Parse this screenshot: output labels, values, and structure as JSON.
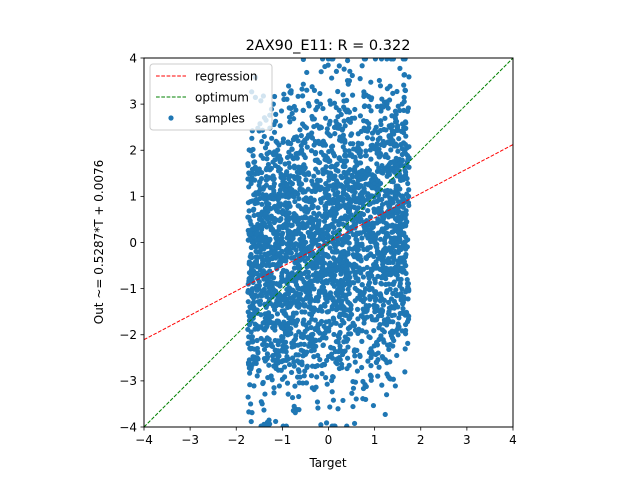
{
  "chart_data": {
    "type": "scatter",
    "title": "2AX90_E11: R = 0.322",
    "xlabel": "Target",
    "ylabel": "Out ~= 0.5287*T + 0.0076",
    "xlim": [
      -4,
      4
    ],
    "ylim": [
      -4,
      4
    ],
    "xticks": [
      "−4",
      "−3",
      "−2",
      "−1",
      "0",
      "1",
      "2",
      "3",
      "4"
    ],
    "yticks": [
      "−4",
      "−3",
      "−2",
      "−1",
      "0",
      "1",
      "2",
      "3",
      "4"
    ],
    "grid": false,
    "legend_position": "upper-left",
    "series": [
      {
        "name": "regression",
        "kind": "line",
        "style": "dashed",
        "color": "#ff0000",
        "slope": 0.5287,
        "intercept": 0.0076,
        "x": [
          -4,
          4
        ]
      },
      {
        "name": "optimum",
        "kind": "line",
        "style": "dashed",
        "color": "#008000",
        "slope": 1,
        "intercept": 0,
        "x": [
          -4,
          4
        ]
      },
      {
        "name": "samples",
        "kind": "scatter",
        "color": "#1f77b4",
        "x_range": [
          -1.75,
          1.75
        ],
        "y_range": [
          -4,
          4
        ],
        "approx_count": 3000
      }
    ]
  }
}
